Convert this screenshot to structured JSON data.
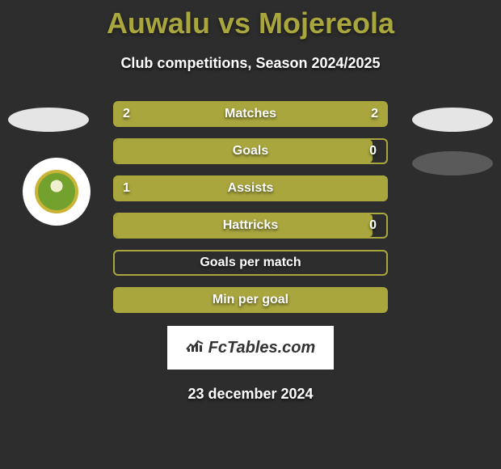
{
  "title": "Auwalu vs Mojereola",
  "subtitle": "Club competitions, Season 2024/2025",
  "date": "23 december 2024",
  "logo_text": "FcTables.com",
  "colors": {
    "accent": "#a9a63e",
    "background": "#2d2d2d",
    "text": "#ffffff",
    "oval_light": "#e5e5e5",
    "oval_dark": "#5a5a5a"
  },
  "rows": [
    {
      "label": "Matches",
      "left": "2",
      "right": "2",
      "style": "filled",
      "fill_left_pct": 100,
      "fill_right_pct": 0
    },
    {
      "label": "Goals",
      "left": "",
      "right": "0",
      "style": "relative",
      "fill_left_pct": 95,
      "fill_right_pct": 0
    },
    {
      "label": "Assists",
      "left": "1",
      "right": "",
      "style": "filled",
      "fill_left_pct": 100,
      "fill_right_pct": 0
    },
    {
      "label": "Hattricks",
      "left": "",
      "right": "0",
      "style": "relative",
      "fill_left_pct": 95,
      "fill_right_pct": 0
    },
    {
      "label": "Goals per match",
      "left": "",
      "right": "",
      "style": "outline",
      "fill_left_pct": 0,
      "fill_right_pct": 0
    },
    {
      "label": "Min per goal",
      "left": "",
      "right": "",
      "style": "filled",
      "fill_left_pct": 100,
      "fill_right_pct": 0
    }
  ]
}
